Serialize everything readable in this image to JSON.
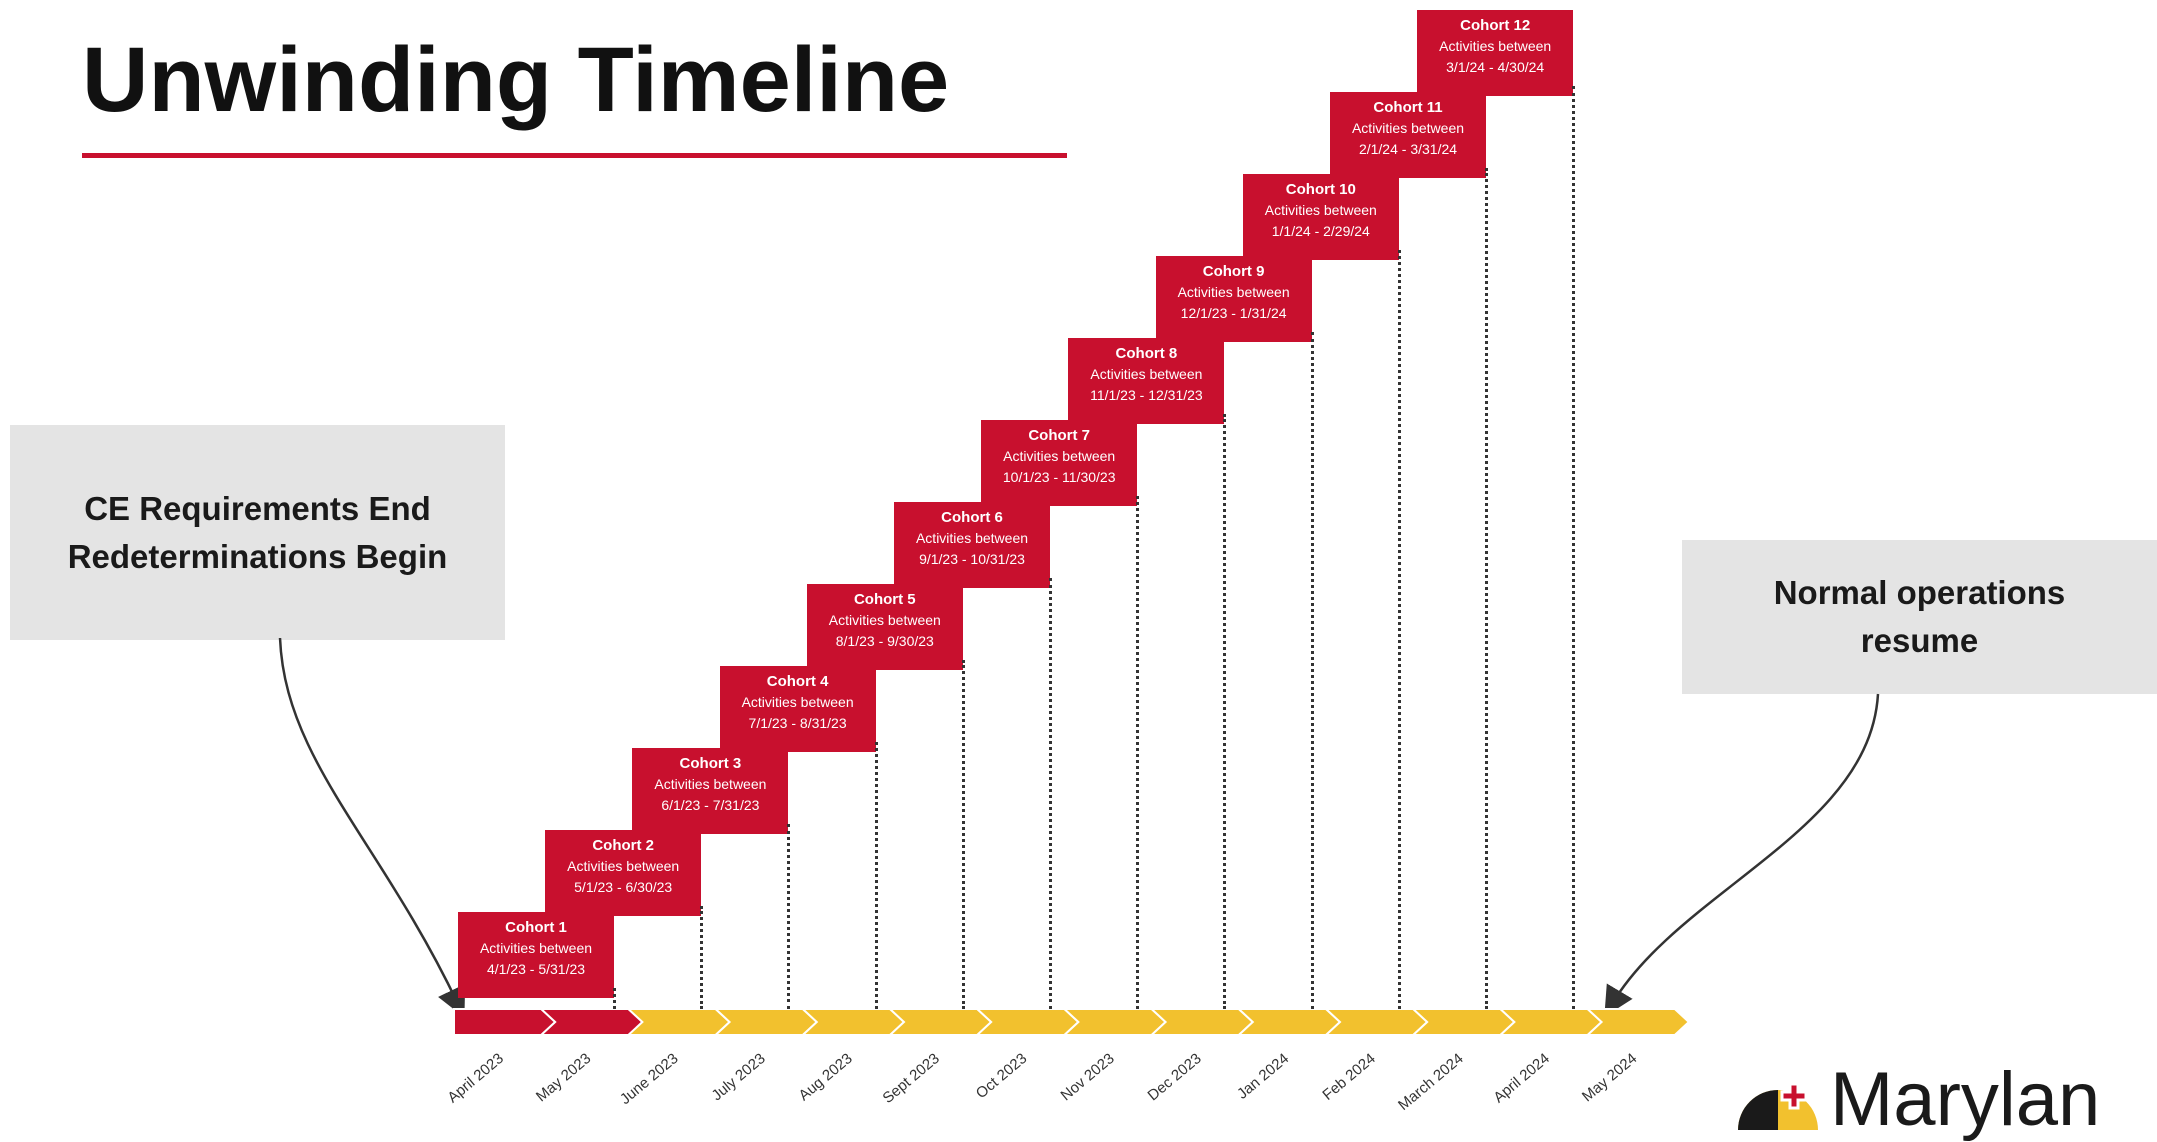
{
  "page": {
    "title": "Unwinding Timeline"
  },
  "callouts": {
    "left_line1": "CE Requirements End",
    "left_line2": "Redeterminations Begin",
    "right_line1": "Normal operations",
    "right_line2": "resume"
  },
  "cohorts": [
    {
      "title": "Cohort 1",
      "line1": "Activities between",
      "line2": "4/1/23 - 5/31/23"
    },
    {
      "title": "Cohort 2",
      "line1": "Activities between",
      "line2": "5/1/23 - 6/30/23"
    },
    {
      "title": "Cohort 3",
      "line1": "Activities between",
      "line2": "6/1/23 - 7/31/23"
    },
    {
      "title": "Cohort 4",
      "line1": "Activities between",
      "line2": "7/1/23 - 8/31/23"
    },
    {
      "title": "Cohort 5",
      "line1": "Activities between",
      "line2": "8/1/23 - 9/30/23"
    },
    {
      "title": "Cohort 6",
      "line1": "Activities between",
      "line2": "9/1/23 - 10/31/23"
    },
    {
      "title": "Cohort 7",
      "line1": "Activities between",
      "line2": "10/1/23 - 11/30/23"
    },
    {
      "title": "Cohort 8",
      "line1": "Activities between",
      "line2": "11/1/23 - 12/31/23"
    },
    {
      "title": "Cohort 9",
      "line1": "Activities between",
      "line2": "12/1/23 - 1/31/24"
    },
    {
      "title": "Cohort 10",
      "line1": "Activities between",
      "line2": "1/1/24 - 2/29/24"
    },
    {
      "title": "Cohort 11",
      "line1": "Activities between",
      "line2": "2/1/24 - 3/31/24"
    },
    {
      "title": "Cohort 12",
      "line1": "Activities between",
      "line2": "3/1/24 - 4/30/24"
    }
  ],
  "months": [
    "April 2023",
    "May 2023",
    "June 2023",
    "July 2023",
    "Aug 2023",
    "Sept 2023",
    "Oct 2023",
    "Nov 2023",
    "Dec 2023",
    "Jan 2024",
    "Feb 2024",
    "March 2024",
    "April 2024",
    "May 2024"
  ],
  "colors": {
    "red": "#c8102e",
    "yellow": "#f2c12e",
    "callout_gray": "#e4e4e4",
    "maryland_black": "#1a1a1a",
    "maryland_gold": "#f2c12e"
  },
  "logo": {
    "text": "Marylan"
  }
}
